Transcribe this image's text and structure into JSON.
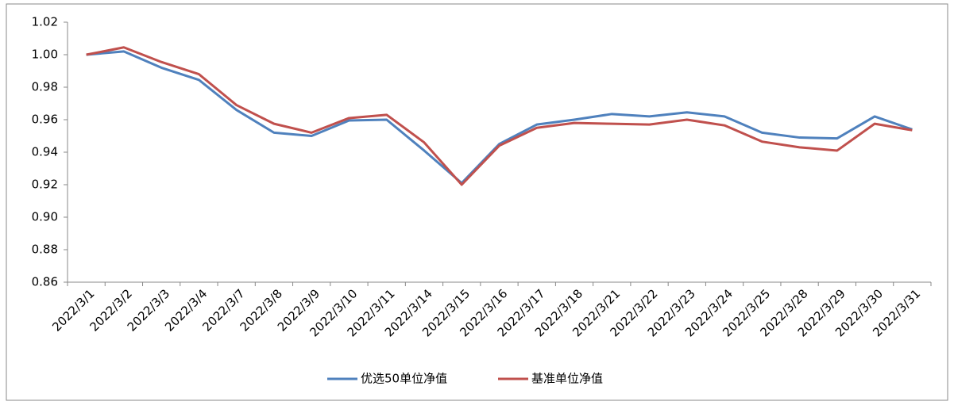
{
  "chart_data": {
    "type": "line",
    "categories": [
      "2022/3/1",
      "2022/3/2",
      "2022/3/3",
      "2022/3/4",
      "2022/3/7",
      "2022/3/8",
      "2022/3/9",
      "2022/3/10",
      "2022/3/11",
      "2022/3/14",
      "2022/3/15",
      "2022/3/16",
      "2022/3/17",
      "2022/3/18",
      "2022/3/21",
      "2022/3/22",
      "2022/3/23",
      "2022/3/24",
      "2022/3/25",
      "2022/3/28",
      "2022/3/29",
      "2022/3/30",
      "2022/3/31"
    ],
    "series": [
      {
        "name": "优选50单位净值",
        "color": "#4f81bd",
        "values": [
          1.0,
          1.002,
          0.992,
          0.9845,
          0.966,
          0.952,
          0.95,
          0.9595,
          0.96,
          0.941,
          0.921,
          0.945,
          0.957,
          0.96,
          0.9635,
          0.962,
          0.9645,
          0.962,
          0.952,
          0.949,
          0.9485,
          0.962,
          0.954
        ]
      },
      {
        "name": "基准单位净值",
        "color": "#c0504d",
        "values": [
          1.0,
          1.0045,
          0.9955,
          0.988,
          0.969,
          0.9575,
          0.952,
          0.961,
          0.963,
          0.946,
          0.92,
          0.944,
          0.955,
          0.958,
          0.9575,
          0.957,
          0.96,
          0.9565,
          0.9465,
          0.943,
          0.941,
          0.9575,
          0.9535
        ]
      }
    ],
    "ylim": [
      0.86,
      1.02
    ],
    "yticks": [
      {
        "value": 0.86,
        "label": "0.86"
      },
      {
        "value": 0.88,
        "label": "0.88"
      },
      {
        "value": 0.9,
        "label": "0.90"
      },
      {
        "value": 0.92,
        "label": "0.92"
      },
      {
        "value": 0.94,
        "label": "0.94"
      },
      {
        "value": 0.96,
        "label": "0.96"
      },
      {
        "value": 0.98,
        "label": "0.98"
      },
      {
        "value": 1.0,
        "label": "1.00"
      },
      {
        "value": 1.02,
        "label": "1.02"
      }
    ],
    "grid": false,
    "legend": "bottom"
  }
}
